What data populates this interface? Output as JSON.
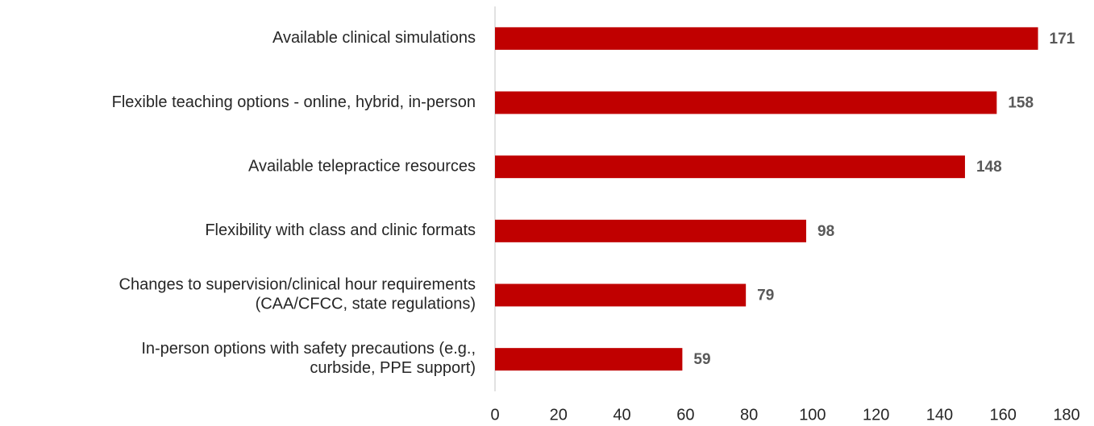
{
  "chart_data": {
    "type": "hbar",
    "categories": [
      "Available clinical simulations",
      "Flexible teaching options - online, hybrid, in-person",
      "Available telepractice resources",
      "Flexibility with class and clinic formats",
      "Changes to supervision/clinical hour requirements\n(CAA/CFCC, state regulations)",
      "In-person options with safety precautions (e.g.,\ncurbside, PPE support)"
    ],
    "values": [
      171,
      158,
      148,
      98,
      79,
      59
    ],
    "color": "#c00000",
    "xlim": [
      0,
      180
    ],
    "xticks": [
      0,
      20,
      40,
      60,
      80,
      100,
      120,
      140,
      160,
      180
    ],
    "grid": false
  }
}
